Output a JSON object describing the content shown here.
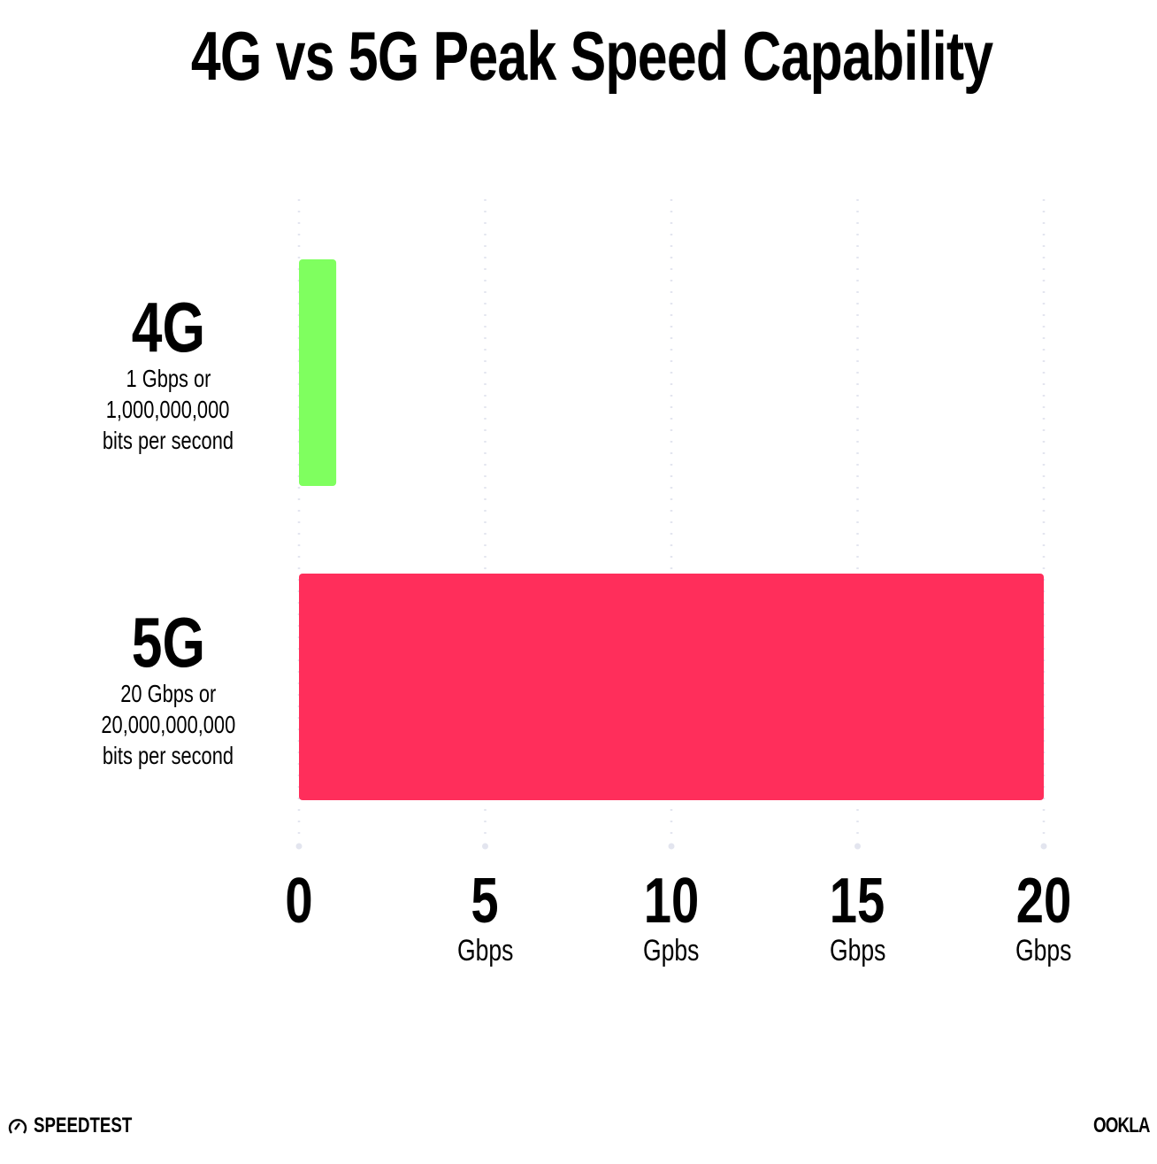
{
  "title": "4G vs 5G Peak Speed Capability",
  "chart_data": {
    "type": "bar",
    "orientation": "horizontal",
    "title": "4G vs 5G Peak Speed Capability",
    "categories": [
      {
        "label": "4G",
        "lines": [
          "1 Gbps or",
          "1,000,000,000",
          "bits per second"
        ]
      },
      {
        "label": "5G",
        "lines": [
          "20 Gbps or",
          "20,000,000,000",
          "bits per second"
        ]
      }
    ],
    "values": [
      1,
      20
    ],
    "colors": [
      "#7FFF5F",
      "#FF2E5B"
    ],
    "xlim": [
      0,
      20
    ],
    "grid": true,
    "ticks": [
      {
        "value": 0,
        "label": "0",
        "unit": ""
      },
      {
        "value": 5,
        "label": "5",
        "unit": "Gbps"
      },
      {
        "value": 10,
        "label": "10",
        "unit": "Gpbs"
      },
      {
        "value": 15,
        "label": "15",
        "unit": "Gbps"
      },
      {
        "value": 20,
        "label": "20",
        "unit": "Gbps"
      }
    ]
  },
  "footer": {
    "left_logo": "SPEEDTEST",
    "right_logo": "OOKLA"
  }
}
